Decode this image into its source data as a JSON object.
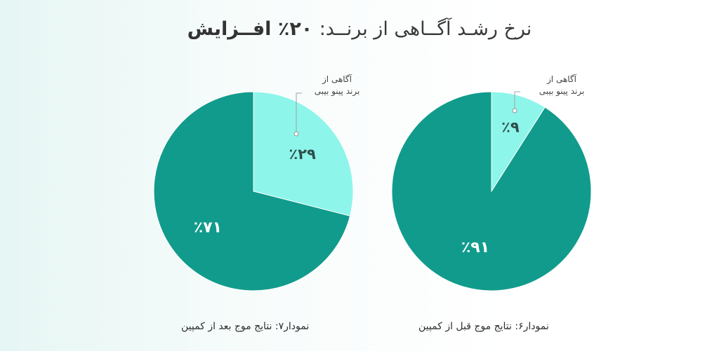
{
  "title": {
    "main": "نرخ رشـد آگــاهی از برنــد:",
    "highlight": "۲۰٪ افــزایش"
  },
  "colors": {
    "background_left": "#e6f6f4",
    "slice_main": "#119b8c",
    "slice_highlight": "#8ef5ea",
    "label_dark": "#ffffff",
    "label_light": "#2f4f4c",
    "annotation": "#444444"
  },
  "chart_data": [
    {
      "type": "pie",
      "caption": "نمودار۷: نتایج موج بعد از کمپین",
      "slices": [
        {
          "label": "آگاهی از برند پینو بیبی",
          "value": 29,
          "value_label": "٪۲۹",
          "color": "#8ef5ea"
        },
        {
          "label": "",
          "value": 71,
          "value_label": "٪۷۱",
          "color": "#119b8c"
        }
      ],
      "annotation_lines": [
        "آگاهی از",
        "برند پینو بیبی"
      ]
    },
    {
      "type": "pie",
      "caption": "نمودار۶: نتایج موج قبل از کمپین",
      "slices": [
        {
          "label": "آگاهی از برند پینو بیبی",
          "value": 9,
          "value_label": "٪۹",
          "color": "#8ef5ea"
        },
        {
          "label": "",
          "value": 91,
          "value_label": "٪۹۱",
          "color": "#119b8c"
        }
      ],
      "annotation_lines": [
        "آگاهی از",
        "برند پینو بیبی"
      ]
    }
  ]
}
